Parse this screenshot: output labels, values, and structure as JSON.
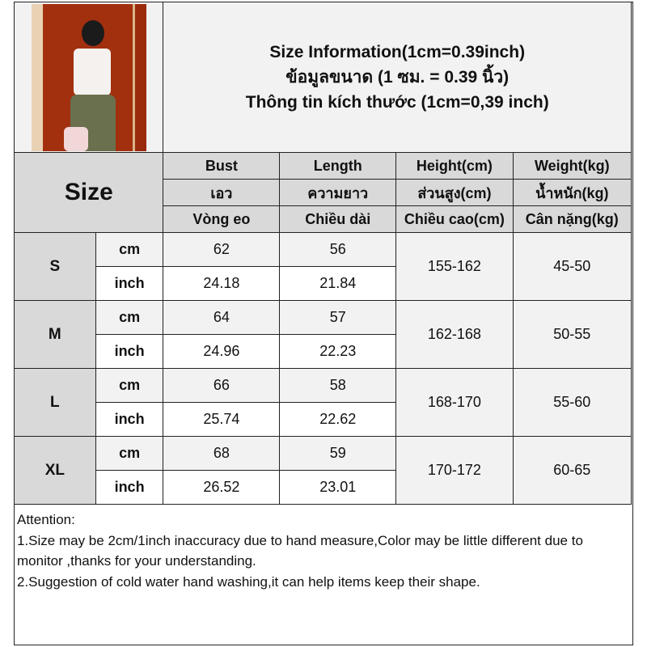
{
  "title_lines": [
    "Size Information(1cm=0.39inch)",
    "ข้อมูลขนาด (1 ซม. = 0.39 นิ้ว)",
    "Thông tin kích thước (1cm=0,39 inch)"
  ],
  "size_header": "Size",
  "columns": [
    {
      "en": "Bust",
      "th": "เอว",
      "vi": "Vòng eo"
    },
    {
      "en": "Length",
      "th": "ความยาว",
      "vi": "Chiều dài"
    },
    {
      "en": "Height(cm)",
      "th": "ส่วนสูง(cm)",
      "vi": "Chiều cao(cm)"
    },
    {
      "en": "Weight(kg)",
      "th": "น้ำหนัก(kg)",
      "vi": "Cân nặng(kg)"
    }
  ],
  "units": {
    "cm": "cm",
    "inch": "inch"
  },
  "rows": [
    {
      "size": "S",
      "cm": [
        "62",
        "56"
      ],
      "inch": [
        "24.18",
        "21.84"
      ],
      "height": "155-162",
      "weight": "45-50"
    },
    {
      "size": "M",
      "cm": [
        "64",
        "57"
      ],
      "inch": [
        "24.96",
        "22.23"
      ],
      "height": "162-168",
      "weight": "50-55"
    },
    {
      "size": "L",
      "cm": [
        "66",
        "58"
      ],
      "inch": [
        "25.74",
        "22.62"
      ],
      "height": "168-170",
      "weight": "55-60"
    },
    {
      "size": "XL",
      "cm": [
        "68",
        "59"
      ],
      "inch": [
        "26.52",
        "23.01"
      ],
      "height": "170-172",
      "weight": "60-65"
    }
  ],
  "notes": [
    "Attention:",
    "1.Size may be 2cm/1inch inaccuracy due to hand measure,Color may be little different due to monitor ,thanks for your understanding.",
    "2.Suggestion of cold water hand washing,it can help items keep their shape."
  ]
}
